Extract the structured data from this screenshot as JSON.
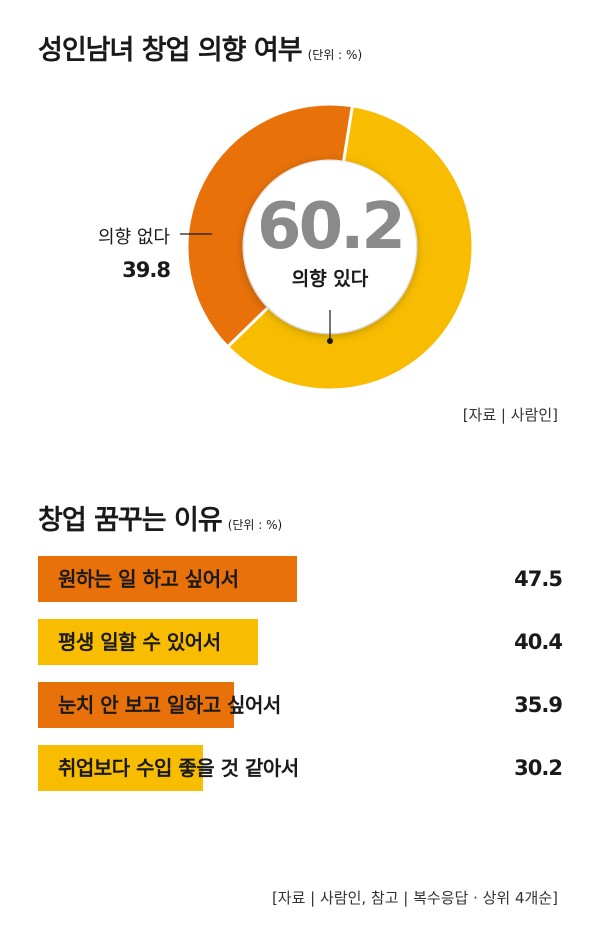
{
  "colors": {
    "orange": "#e8710a",
    "yellow": "#f8bd00",
    "gray": "#8a8a8a"
  },
  "chart1": {
    "title": "성인남녀 창업 의향 여부",
    "unit": "(단위 : %)",
    "center_value": "60.2",
    "center_label": "의향 있다",
    "side_label": "의향 없다",
    "side_value": "39.8",
    "source": "[자료 | 사람인]"
  },
  "chart2": {
    "title": "창업 꿈꾸는 이유",
    "unit": "(단위 : %)",
    "source": "[자료 | 사람인, 참고 | 복수응답 · 상위 4개순]"
  },
  "chart_data": [
    {
      "type": "pie",
      "title": "성인남녀 창업 의향 여부",
      "categories": [
        "의향 있다",
        "의향 없다"
      ],
      "values": [
        60.2,
        39.8
      ]
    },
    {
      "type": "bar",
      "title": "창업 꿈꾸는 이유",
      "categories": [
        "원하는 일 하고 싶어서",
        "평생 일할 수 있어서",
        "눈치 안 보고 일하고 싶어서",
        "취업보다 수입 좋을 것 같아서"
      ],
      "values": [
        47.5,
        40.4,
        35.9,
        30.2
      ],
      "value_labels": [
        "47.5",
        "40.4",
        "35.9",
        "30.2"
      ]
    }
  ]
}
